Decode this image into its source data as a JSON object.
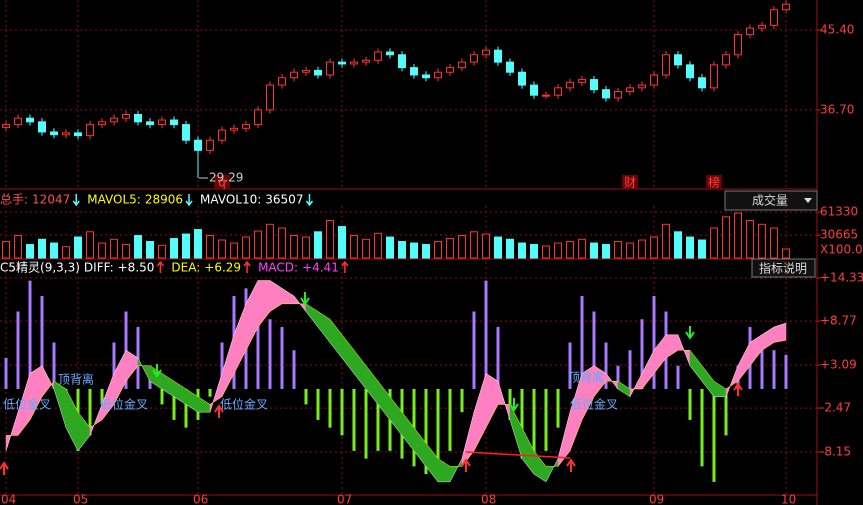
{
  "chart_data": [
    {
      "type": "candlestick",
      "categories": [
        "04",
        null,
        null,
        null,
        null,
        null,
        "05",
        null,
        null,
        null,
        null,
        null,
        null,
        null,
        null,
        null,
        "06",
        null,
        null,
        null,
        null,
        null,
        null,
        null,
        null,
        null,
        null,
        null,
        "07",
        null,
        null,
        null,
        null,
        null,
        null,
        null,
        null,
        null,
        null,
        null,
        "08",
        null,
        null,
        null,
        null,
        null,
        null,
        null,
        null,
        null,
        null,
        null,
        null,
        null,
        "09",
        null,
        null,
        null,
        null,
        null,
        null,
        null,
        null,
        null,
        null,
        "10"
      ],
      "open": [
        34.8,
        35.1,
        35.8,
        35.4,
        34.3,
        34.0,
        34.2,
        33.9,
        35.1,
        35.4,
        35.8,
        36.2,
        35.4,
        35.1,
        35.6,
        35.1,
        33.4,
        32.3,
        33.4,
        34.5,
        34.7,
        35.1,
        36.7,
        39.4,
        40.2,
        40.8,
        41.0,
        40.5,
        41.9,
        41.7,
        41.9,
        42.1,
        43.0,
        42.7,
        41.3,
        40.5,
        40.2,
        40.8,
        41.3,
        41.9,
        42.7,
        43.2,
        41.9,
        40.8,
        39.4,
        38.3,
        38.3,
        39.1,
        39.7,
        40.0,
        38.9,
        38.0,
        38.7,
        39.1,
        39.4,
        40.5,
        42.7,
        41.6,
        40.2,
        39.1,
        41.6,
        42.7,
        44.9,
        45.6,
        45.9,
        47.6
      ],
      "high": [
        35.5,
        36.2,
        36.2,
        35.8,
        34.7,
        34.6,
        34.6,
        35.5,
        35.8,
        36.2,
        36.6,
        36.6,
        35.8,
        36.0,
        36.0,
        35.5,
        33.8,
        33.8,
        34.9,
        35.1,
        35.5,
        37.1,
        39.8,
        40.6,
        41.2,
        41.4,
        41.4,
        42.3,
        42.3,
        42.3,
        42.5,
        43.4,
        43.4,
        43.1,
        41.7,
        40.9,
        41.2,
        41.7,
        42.3,
        43.1,
        43.6,
        43.6,
        42.3,
        41.2,
        39.8,
        38.7,
        39.5,
        40.1,
        40.4,
        40.4,
        39.3,
        39.1,
        39.5,
        39.8,
        40.9,
        43.1,
        43.1,
        42.0,
        40.6,
        42.0,
        43.1,
        45.3,
        46.0,
        46.3,
        48.0,
        48.6
      ],
      "low": [
        34.4,
        34.7,
        35.0,
        33.9,
        33.6,
        33.6,
        33.5,
        33.5,
        34.7,
        35.0,
        35.4,
        35.0,
        34.7,
        34.7,
        34.7,
        33.0,
        29.29,
        31.9,
        33.0,
        34.1,
        34.3,
        34.7,
        36.3,
        39.0,
        39.8,
        40.4,
        40.1,
        40.1,
        41.3,
        41.3,
        41.5,
        41.7,
        42.3,
        40.9,
        40.1,
        39.8,
        39.8,
        40.4,
        40.9,
        41.5,
        42.3,
        41.5,
        40.4,
        39.0,
        37.9,
        37.9,
        37.9,
        38.7,
        39.3,
        38.5,
        37.6,
        37.6,
        38.3,
        38.7,
        39.0,
        40.1,
        41.2,
        39.8,
        38.7,
        38.7,
        41.2,
        42.3,
        44.5,
        45.2,
        45.5,
        47.2
      ],
      "close": [
        35.1,
        35.8,
        35.4,
        34.3,
        34.0,
        34.2,
        33.9,
        35.1,
        35.4,
        35.8,
        36.2,
        35.4,
        35.1,
        35.6,
        35.1,
        33.4,
        32.3,
        33.4,
        34.5,
        34.7,
        35.1,
        36.7,
        39.4,
        40.2,
        40.8,
        41.0,
        40.5,
        41.9,
        41.7,
        41.9,
        42.1,
        43.0,
        42.7,
        41.3,
        40.5,
        40.2,
        40.8,
        41.3,
        41.9,
        42.7,
        43.2,
        41.9,
        40.8,
        39.4,
        38.3,
        38.3,
        39.1,
        39.7,
        40.0,
        38.9,
        38.0,
        38.7,
        39.1,
        39.4,
        40.5,
        42.7,
        41.6,
        40.2,
        39.1,
        41.6,
        42.7,
        44.9,
        45.6,
        45.9,
        47.6,
        48.2
      ],
      "event_markers": [
        null,
        null,
        null,
        null,
        null,
        null,
        null,
        null,
        null,
        null,
        null,
        null,
        null,
        null,
        null,
        null,
        null,
        null,
        "q",
        null,
        null,
        null,
        null,
        null,
        null,
        null,
        null,
        null,
        null,
        null,
        null,
        null,
        null,
        null,
        null,
        null,
        null,
        null,
        null,
        null,
        null,
        null,
        null,
        null,
        null,
        null,
        null,
        null,
        null,
        null,
        null,
        null,
        "财",
        null,
        null,
        null,
        null,
        null,
        null,
        "榜",
        null,
        null,
        null,
        null,
        null,
        null
      ],
      "up_color": "#ff3232",
      "down_color": "#54fcfc",
      "ylim": [
        28.2,
        48.66
      ],
      "yticks": [
        {
          "value": 45.4,
          "label": "45.40"
        },
        {
          "value": 36.7,
          "label": "36.70"
        }
      ],
      "grid": true
    },
    {
      "type": "bar",
      "header": [
        {
          "label": "总手:",
          "value": 12047,
          "color": "#ff5050"
        },
        {
          "label": "MAVOL5:",
          "value": 28906,
          "color": "#ffff00"
        },
        {
          "label": "MAVOL10:",
          "value": 36507,
          "color": "#ffffff"
        }
      ],
      "values": [
        22000,
        30000,
        18000,
        25000,
        20000,
        15000,
        28000,
        35000,
        20000,
        25000,
        18000,
        30000,
        22000,
        17000,
        26000,
        32000,
        38000,
        30000,
        24000,
        20000,
        28000,
        36000,
        45000,
        40000,
        30000,
        28000,
        35000,
        50000,
        42000,
        30000,
        25000,
        33000,
        28000,
        22000,
        20000,
        18000,
        22000,
        26000,
        30000,
        35000,
        32000,
        28000,
        25000,
        20000,
        18000,
        16000,
        20000,
        22000,
        25000,
        20000,
        18000,
        22000,
        20000,
        24000,
        28000,
        45000,
        35000,
        28000,
        24000,
        40000,
        55000,
        60000,
        50000,
        45000,
        40000,
        12047
      ],
      "ylim": [
        0,
        70000
      ],
      "yticks": [
        61330,
        30665
      ],
      "unit_label": "X100.0",
      "selector": "成交量"
    },
    {
      "type": "macd",
      "title": "C5精灵(9,3,3)",
      "button": "指标说明",
      "series": [
        {
          "name": "DIFF:",
          "color": "#ffffff",
          "value_label": "+8.50",
          "values": [
            -8,
            -3,
            2,
            3,
            0,
            -5,
            -8,
            -6,
            -2,
            2,
            5,
            4,
            1,
            0,
            -1,
            -2,
            -3,
            -3,
            2,
            7,
            11,
            14,
            14,
            13,
            12,
            10,
            8,
            6,
            4,
            2,
            0,
            -2,
            -4,
            -6,
            -8,
            -10,
            -12,
            -12,
            -9,
            -3,
            2,
            1,
            -4,
            -9,
            -11,
            -12,
            -9,
            -3,
            2,
            3,
            2,
            0,
            -1,
            2,
            5,
            7,
            7,
            3,
            1,
            -1,
            -1,
            3,
            6,
            7,
            8,
            8.5
          ]
        },
        {
          "name": "DEA:",
          "color": "#ffff00",
          "value_label": "+6.29",
          "values": [
            -6,
            -6,
            -4,
            -1,
            1,
            0,
            -3,
            -5,
            -4,
            -2,
            1,
            3,
            3,
            2,
            1,
            0,
            -1,
            -2,
            -1,
            2,
            5,
            8,
            10,
            11,
            11,
            11,
            10,
            9,
            7,
            5,
            3,
            1,
            -1,
            -3,
            -5,
            -7,
            -9,
            -10,
            -10,
            -8,
            -5,
            -2,
            -2,
            -5,
            -8,
            -10,
            -10,
            -8,
            -4,
            -1,
            1,
            1,
            0,
            0,
            2,
            4,
            5,
            5,
            3,
            1,
            0,
            1,
            3,
            5,
            6,
            6.29
          ]
        }
      ],
      "histogram": {
        "name": "MACD:",
        "color": "#ff40ff",
        "value_label": "+4.41",
        "pos_color": "#a878ff",
        "neg_color": "#77ee22",
        "values": [
          4,
          10,
          14,
          12,
          6,
          -4,
          -8,
          -6,
          -2,
          6,
          10,
          8,
          3,
          -2,
          -4,
          -5,
          -4,
          -1,
          6,
          12,
          13,
          10,
          9,
          8,
          5,
          -2,
          -4,
          -5,
          -6,
          -8,
          -9,
          -8,
          -8,
          -9,
          -10,
          -11,
          -10,
          -8,
          -3,
          10,
          14,
          8,
          -4,
          -9,
          -10,
          -8,
          -5,
          6,
          12,
          10,
          6,
          3,
          5,
          9,
          12,
          10,
          3,
          -4,
          -10,
          -12,
          -6,
          3,
          8,
          7,
          5,
          4.41
        ]
      },
      "up_fill": "#ff80c0",
      "down_fill": "#2ea820",
      "annotations": [
        "低位金叉",
        "顶背离",
        "低位金叉",
        "低位金叉",
        "顶背离",
        "低位金叉"
      ],
      "ylim": [
        -13.7,
        16.4
      ],
      "yticks": [
        {
          "value": 14.33,
          "label": "+14.33"
        },
        {
          "value": 8.77,
          "label": "+8.77"
        },
        {
          "value": 3.09,
          "label": "+3.09"
        },
        -2.47,
        -8.15
      ]
    }
  ]
}
